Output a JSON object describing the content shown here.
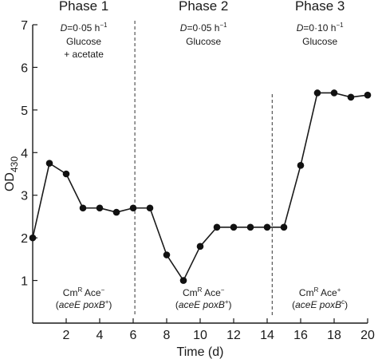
{
  "chart_data": {
    "type": "line",
    "xlabel": "Time (d)",
    "ylabel": "OD",
    "ylabel_subscript": "430",
    "xlim": [
      0,
      20
    ],
    "ylim": [
      0,
      7
    ],
    "xticks": [
      2,
      4,
      6,
      8,
      10,
      12,
      14,
      16,
      18,
      20
    ],
    "yticks": [
      1,
      2,
      3,
      4,
      5,
      6,
      7
    ],
    "grid": false,
    "series": [
      {
        "x": [
          0,
          1,
          2,
          3,
          4,
          5,
          6,
          7,
          8,
          9,
          10,
          11,
          12,
          13,
          14,
          15,
          16,
          17,
          18,
          19,
          20
        ],
        "values": [
          2.0,
          3.75,
          3.5,
          2.7,
          2.7,
          2.6,
          2.7,
          2.7,
          1.6,
          1.0,
          1.8,
          2.25,
          2.25,
          2.25,
          2.25,
          2.25,
          3.7,
          5.4,
          5.4,
          5.3,
          5.35
        ]
      }
    ],
    "phase_boundaries": [
      6.1,
      14.3
    ],
    "phases": [
      {
        "x_start": 0,
        "x_end": 6.1,
        "title": "Phase 1",
        "rate_prefix": "D",
        "rate_value": "=0·05 h",
        "rate_exp": "−1",
        "medium_lines": [
          "Glucose",
          "+ acetate"
        ],
        "strain_parts": [
          "Cm",
          "R",
          " Ace",
          "−"
        ],
        "genotype_parts": [
          "(",
          "aceE poxB",
          "+",
          ")"
        ]
      },
      {
        "x_start": 6.1,
        "x_end": 14.3,
        "title": "Phase 2",
        "rate_prefix": "D",
        "rate_value": "=0·05 h",
        "rate_exp": "−1",
        "medium_lines": [
          "Glucose"
        ],
        "strain_parts": [
          "Cm",
          "R",
          " Ace",
          "−"
        ],
        "genotype_parts": [
          "(",
          "aceE poxB",
          "+",
          ")"
        ]
      },
      {
        "x_start": 14.3,
        "x_end": 20,
        "title": "Phase 3",
        "rate_prefix": "D",
        "rate_value": "=0·10 h",
        "rate_exp": "−1",
        "medium_lines": [
          "Glucose"
        ],
        "strain_parts": [
          "Cm",
          "R",
          " Ace",
          "+"
        ],
        "genotype_parts": [
          "(",
          "aceE poxB",
          "c",
          ")"
        ]
      }
    ],
    "colors": {
      "line": "#1a1a1a",
      "marker": "#111111",
      "axis": "#1a1a1a",
      "divider": "#333333"
    }
  }
}
